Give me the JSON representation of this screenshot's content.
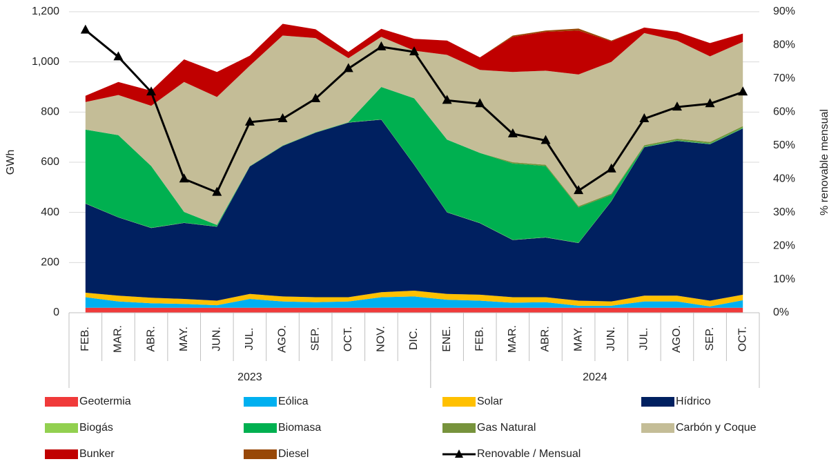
{
  "chart_data": {
    "type": "area",
    "stacked": true,
    "ylabel": "GWh",
    "y2label": "% renovable mensual",
    "categories": [
      "FEB.",
      "MAR.",
      "ABR.",
      "MAY.",
      "JUN.",
      "JUL.",
      "AGO.",
      "SEP.",
      "OCT.",
      "NOV.",
      "DIC.",
      "ENE.",
      "FEB.",
      "MAR.",
      "ABR.",
      "MAY.",
      "JUN.",
      "JUL.",
      "AGO.",
      "SEP.",
      "OCT."
    ],
    "groups": [
      {
        "name": "2023",
        "count": 11
      },
      {
        "name": "2024",
        "count": 10
      }
    ],
    "ylim": [
      0,
      1200
    ],
    "yticks": [
      0,
      200,
      400,
      600,
      800,
      {
        "value": 1000,
        "label": "1,000"
      },
      {
        "value": 1200,
        "label": "1,200"
      }
    ],
    "y2lim": [
      0,
      90
    ],
    "y2ticks": [
      {
        "value": 0,
        "label": "0%"
      },
      {
        "value": 10,
        "label": "10%"
      },
      {
        "value": 20,
        "label": "20%"
      },
      {
        "value": 30,
        "label": "30%"
      },
      {
        "value": 40,
        "label": "40%"
      },
      {
        "value": 50,
        "label": "50%"
      },
      {
        "value": 60,
        "label": "60%"
      },
      {
        "value": 70,
        "label": "70%"
      },
      {
        "value": 80,
        "label": "80%"
      },
      {
        "value": 90,
        "label": "90%"
      }
    ],
    "grid": true,
    "series": [
      {
        "name": "Geotermia",
        "color": "#f03a3a",
        "values": [
          20,
          20,
          20,
          20,
          20,
          20,
          20,
          20,
          20,
          20,
          20,
          20,
          20,
          20,
          20,
          20,
          20,
          20,
          20,
          20,
          20
        ]
      },
      {
        "name": "Eólica",
        "color": "#00b0f0",
        "values": [
          42,
          25,
          18,
          15,
          10,
          35,
          25,
          22,
          25,
          42,
          45,
          32,
          28,
          20,
          22,
          8,
          8,
          25,
          25,
          5,
          30
        ]
      },
      {
        "name": "Solar",
        "color": "#ffc000",
        "values": [
          18,
          23,
          22,
          20,
          18,
          20,
          20,
          20,
          17,
          20,
          23,
          23,
          24,
          22,
          20,
          20,
          17,
          23,
          23,
          23,
          22
        ]
      },
      {
        "name": "Hídrico",
        "color": "#002060",
        "values": [
          355,
          312,
          278,
          303,
          295,
          508,
          600,
          656,
          696,
          688,
          502,
          325,
          285,
          228,
          238,
          230,
          400,
          592,
          617,
          624,
          663
        ]
      },
      {
        "name": "Biogás",
        "color": "#92d050",
        "values": [
          1,
          1,
          1,
          1,
          1,
          1,
          1,
          1,
          1,
          1,
          1,
          1,
          1,
          1,
          1,
          1,
          1,
          1,
          1,
          1,
          1
        ]
      },
      {
        "name": "Biomasa",
        "color": "#00b050",
        "values": [
          294,
          327,
          246,
          43,
          6,
          1,
          1,
          1,
          1,
          129,
          264,
          289,
          279,
          304,
          284,
          141,
          24,
          2,
          2,
          2,
          2
        ]
      },
      {
        "name": "Gas Natural",
        "color": "#77933c",
        "values": [
          0,
          0,
          0,
          0,
          0,
          0,
          0,
          0,
          0,
          0,
          0,
          0,
          0,
          5,
          5,
          5,
          5,
          5,
          6,
          6,
          6
        ]
      },
      {
        "name": "Carbón y Coque",
        "color": "#c4bd97",
        "values": [
          110,
          160,
          240,
          518,
          510,
          400,
          438,
          375,
          255,
          200,
          190,
          338,
          331,
          360,
          375,
          525,
          525,
          447,
          391,
          341,
          336
        ]
      },
      {
        "name": "Bunker",
        "color": "#c00000",
        "values": [
          25,
          52,
          60,
          90,
          100,
          40,
          47,
          35,
          25,
          32,
          47,
          57,
          50,
          140,
          155,
          175,
          82,
          22,
          35,
          53,
          33
        ]
      },
      {
        "name": "Diesel",
        "color": "#984807",
        "values": [
          0,
          0,
          0,
          0,
          0,
          0,
          0,
          0,
          0,
          0,
          0,
          0,
          0,
          5,
          5,
          8,
          3,
          0,
          0,
          0,
          0
        ]
      },
      {
        "name": "Renovable / Mensual",
        "color": "#000000",
        "axis": "y2",
        "kind": "line",
        "values": [
          84.5,
          76.5,
          66,
          40,
          36,
          57,
          58,
          64,
          73,
          79.5,
          78,
          63.5,
          62.5,
          53.5,
          51.5,
          36.5,
          43,
          58,
          61.5,
          62.5,
          66
        ]
      }
    ]
  }
}
